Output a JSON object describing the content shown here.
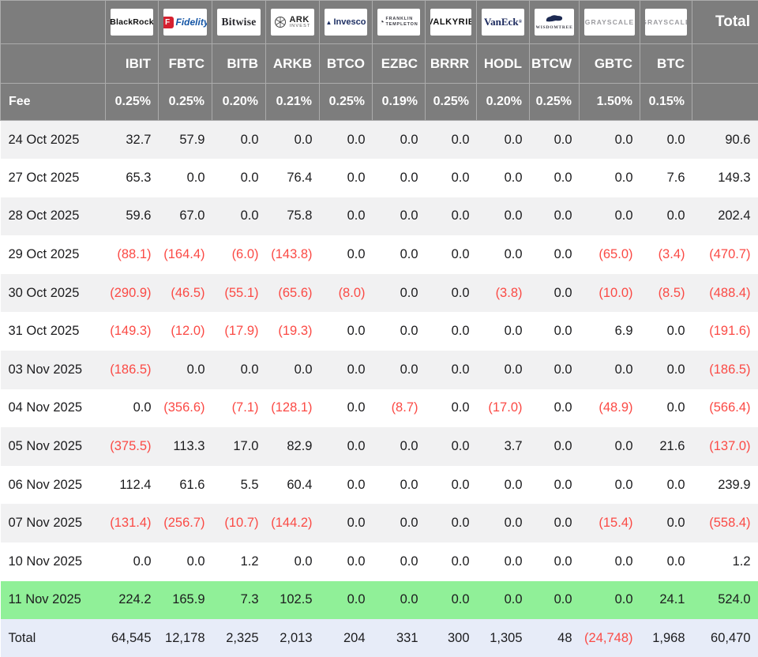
{
  "header": {
    "corner": "",
    "total_label": "Total",
    "fee_label": "Fee",
    "columns": [
      {
        "id": "blackrock",
        "ticker": "IBIT",
        "fee": "0.25%",
        "logo": {
          "text": "BlackRock"
        }
      },
      {
        "id": "fidelity",
        "ticker": "FBTC",
        "fee": "0.25%",
        "logo": {
          "icon": "F",
          "text": "Fidelity"
        }
      },
      {
        "id": "bitwise",
        "ticker": "BITB",
        "fee": "0.20%",
        "logo": {
          "text": "Bitwise"
        }
      },
      {
        "id": "ark",
        "ticker": "ARKB",
        "fee": "0.21%",
        "logo": {
          "text": "ARK",
          "sub": "INVEST"
        }
      },
      {
        "id": "invesco",
        "ticker": "BTCO",
        "fee": "0.25%",
        "logo": {
          "text": "Invesco"
        }
      },
      {
        "id": "franklin",
        "ticker": "EZBC",
        "fee": "0.19%",
        "logo": {
          "text": "FRANKLIN",
          "sub": "TEMPLETON"
        }
      },
      {
        "id": "valkyrie",
        "ticker": "BRRR",
        "fee": "0.25%",
        "logo": {
          "text": "VALKYRIE"
        }
      },
      {
        "id": "vaneck",
        "ticker": "HODL",
        "fee": "0.20%",
        "logo": {
          "text": "VanEck"
        }
      },
      {
        "id": "wisdomtree",
        "ticker": "BTCW",
        "fee": "0.25%",
        "logo": {
          "text": "WISDOMTREE"
        }
      },
      {
        "id": "grayscale",
        "ticker": "GBTC",
        "fee": "1.50%",
        "logo": {
          "text": "GRAYSCALE"
        }
      },
      {
        "id": "grayscale",
        "ticker": "BTC",
        "fee": "0.15%",
        "logo": {
          "text": "GRAYSCALE"
        }
      }
    ]
  },
  "rows": [
    {
      "date": "24 Oct 2025",
      "values": [
        "32.7",
        "57.9",
        "0.0",
        "0.0",
        "0.0",
        "0.0",
        "0.0",
        "0.0",
        "0.0",
        "0.0",
        "0.0"
      ],
      "total": "90.6"
    },
    {
      "date": "27 Oct 2025",
      "values": [
        "65.3",
        "0.0",
        "0.0",
        "76.4",
        "0.0",
        "0.0",
        "0.0",
        "0.0",
        "0.0",
        "0.0",
        "7.6"
      ],
      "total": "149.3"
    },
    {
      "date": "28 Oct 2025",
      "values": [
        "59.6",
        "67.0",
        "0.0",
        "75.8",
        "0.0",
        "0.0",
        "0.0",
        "0.0",
        "0.0",
        "0.0",
        "0.0"
      ],
      "total": "202.4"
    },
    {
      "date": "29 Oct 2025",
      "values": [
        "(88.1)",
        "(164.4)",
        "(6.0)",
        "(143.8)",
        "0.0",
        "0.0",
        "0.0",
        "0.0",
        "0.0",
        "(65.0)",
        "(3.4)"
      ],
      "total": "(470.7)"
    },
    {
      "date": "30 Oct 2025",
      "values": [
        "(290.9)",
        "(46.5)",
        "(55.1)",
        "(65.6)",
        "(8.0)",
        "0.0",
        "0.0",
        "(3.8)",
        "0.0",
        "(10.0)",
        "(8.5)"
      ],
      "total": "(488.4)"
    },
    {
      "date": "31 Oct 2025",
      "values": [
        "(149.3)",
        "(12.0)",
        "(17.9)",
        "(19.3)",
        "0.0",
        "0.0",
        "0.0",
        "0.0",
        "0.0",
        "6.9",
        "0.0"
      ],
      "total": "(191.6)"
    },
    {
      "date": "03 Nov 2025",
      "values": [
        "(186.5)",
        "0.0",
        "0.0",
        "0.0",
        "0.0",
        "0.0",
        "0.0",
        "0.0",
        "0.0",
        "0.0",
        "0.0"
      ],
      "total": "(186.5)"
    },
    {
      "date": "04 Nov 2025",
      "values": [
        "0.0",
        "(356.6)",
        "(7.1)",
        "(128.1)",
        "0.0",
        "(8.7)",
        "0.0",
        "(17.0)",
        "0.0",
        "(48.9)",
        "0.0"
      ],
      "total": "(566.4)"
    },
    {
      "date": "05 Nov 2025",
      "values": [
        "(375.5)",
        "113.3",
        "17.0",
        "82.9",
        "0.0",
        "0.0",
        "0.0",
        "3.7",
        "0.0",
        "0.0",
        "21.6"
      ],
      "total": "(137.0)"
    },
    {
      "date": "06 Nov 2025",
      "values": [
        "112.4",
        "61.6",
        "5.5",
        "60.4",
        "0.0",
        "0.0",
        "0.0",
        "0.0",
        "0.0",
        "0.0",
        "0.0"
      ],
      "total": "239.9"
    },
    {
      "date": "07 Nov 2025",
      "values": [
        "(131.4)",
        "(256.7)",
        "(10.7)",
        "(144.2)",
        "0.0",
        "0.0",
        "0.0",
        "0.0",
        "0.0",
        "(15.4)",
        "0.0"
      ],
      "total": "(558.4)"
    },
    {
      "date": "10 Nov 2025",
      "values": [
        "0.0",
        "0.0",
        "1.2",
        "0.0",
        "0.0",
        "0.0",
        "0.0",
        "0.0",
        "0.0",
        "0.0",
        "0.0"
      ],
      "total": "1.2"
    },
    {
      "date": "11 Nov 2025",
      "values": [
        "224.2",
        "165.9",
        "7.3",
        "102.5",
        "0.0",
        "0.0",
        "0.0",
        "0.0",
        "0.0",
        "0.0",
        "24.1"
      ],
      "total": "524.0",
      "highlight": "green"
    }
  ],
  "total_row": {
    "label": "Total",
    "values": [
      "64,545",
      "12,178",
      "2,325",
      "2,013",
      "204",
      "331",
      "300",
      "1,305",
      "48",
      "(24,748)",
      "1,968"
    ],
    "total": "60,470"
  },
  "colors": {
    "header_bg": "#7d7d7d",
    "stripe": "#f1f1f2",
    "negative": "#fb4a45",
    "highlight_row": "#90f098",
    "total_row_bg": "#e7ecf8"
  }
}
